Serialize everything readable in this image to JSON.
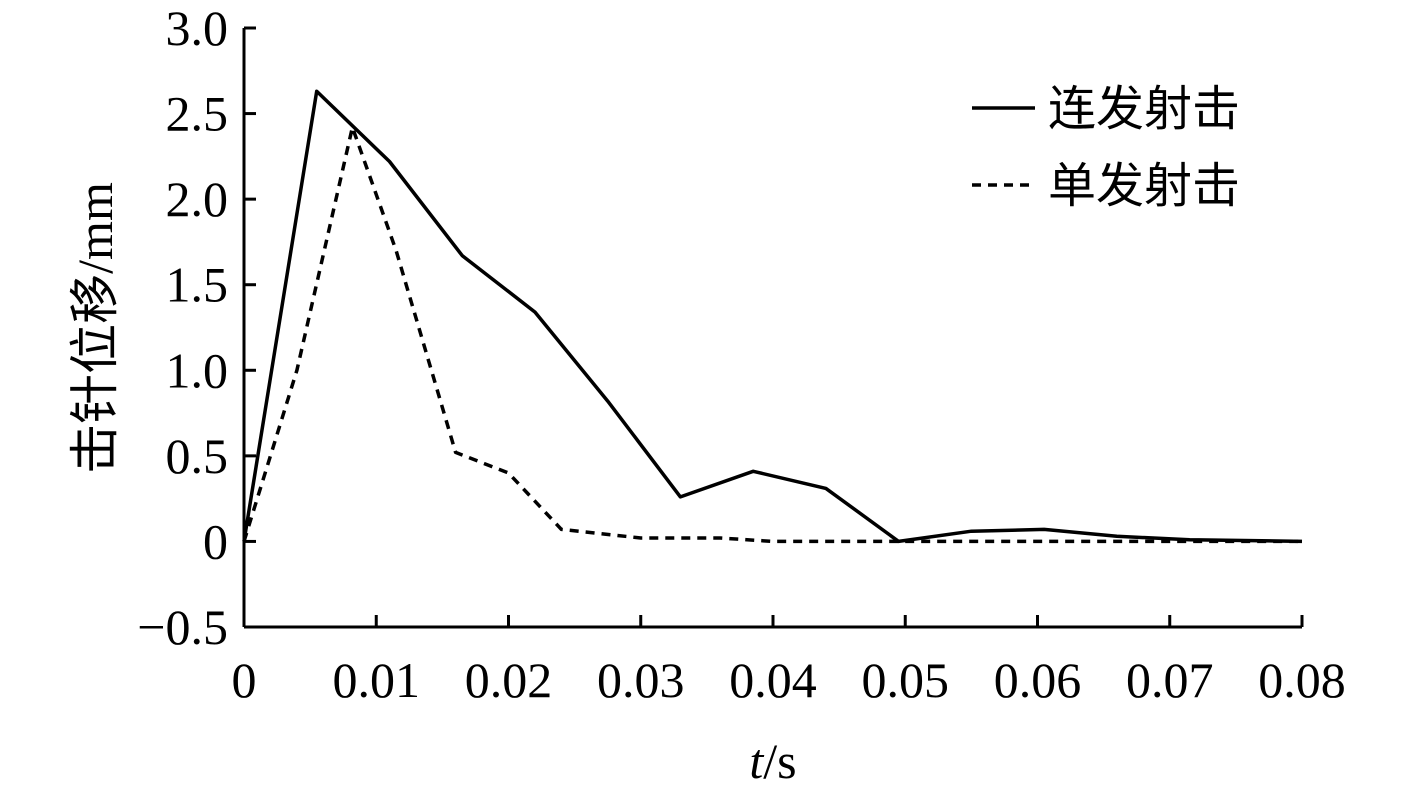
{
  "chart_data": {
    "type": "line",
    "xlabel_italic": "t",
    "xlabel_unit": "/s",
    "ylabel": "击针位移/mm",
    "xlim": [
      0,
      0.08
    ],
    "ylim": [
      -0.5,
      3.0
    ],
    "xticks": [
      0,
      0.01,
      0.02,
      0.03,
      0.04,
      0.05,
      0.06,
      0.07,
      0.08
    ],
    "xtick_labels": [
      "0",
      "0.01",
      "0.02",
      "0.03",
      "0.04",
      "0.05",
      "0.06",
      "0.07",
      "0.08"
    ],
    "yticks": [
      -0.5,
      0,
      0.5,
      1.0,
      1.5,
      2.0,
      2.5,
      3.0
    ],
    "ytick_labels": [
      "−0.5",
      "0",
      "0.5",
      "1.0",
      "1.5",
      "2.0",
      "2.5",
      "3.0"
    ],
    "grid": false,
    "legend_position": "top-right",
    "series": [
      {
        "name": "连发射击",
        "style": "solid",
        "x": [
          0,
          0.0055,
          0.011,
          0.0165,
          0.022,
          0.0275,
          0.033,
          0.0385,
          0.044,
          0.0495,
          0.055,
          0.0605,
          0.066,
          0.0715,
          0.08
        ],
        "y": [
          0,
          2.63,
          2.22,
          1.67,
          1.34,
          0.82,
          0.26,
          0.41,
          0.31,
          0.0,
          0.06,
          0.07,
          0.03,
          0.01,
          0.0
        ]
      },
      {
        "name": "单发射击",
        "style": "dashed",
        "x": [
          0,
          0.004,
          0.0082,
          0.0115,
          0.016,
          0.02,
          0.024,
          0.03,
          0.036,
          0.04,
          0.05,
          0.06,
          0.07,
          0.08
        ],
        "y": [
          0,
          1.0,
          2.42,
          1.7,
          0.52,
          0.4,
          0.07,
          0.02,
          0.02,
          0.0,
          0.0,
          0.0,
          0.0,
          0.0
        ]
      }
    ]
  }
}
